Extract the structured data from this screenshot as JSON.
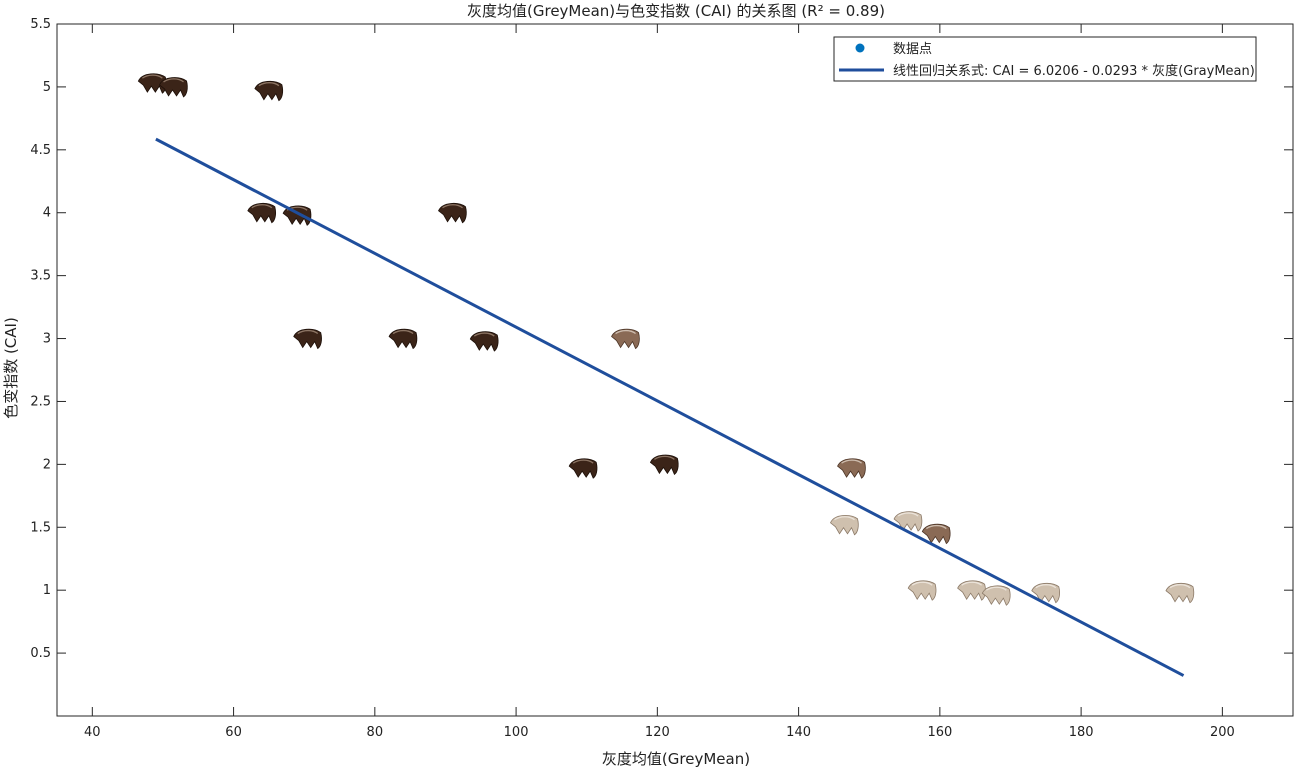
{
  "chart_data": {
    "type": "scatter",
    "title": "灰度均值(GreyMean)与色变指数 (CAI) 的关系图 (R² = 0.89)",
    "xlabel": "灰度均值(GreyMean)",
    "ylabel": "色变指数 (CAI)",
    "xlim": [
      35,
      210
    ],
    "ylim": [
      0,
      5.5
    ],
    "x_ticks": [
      40,
      60,
      80,
      100,
      120,
      140,
      160,
      180,
      200
    ],
    "y_ticks": [
      0.5,
      1,
      1.5,
      2,
      2.5,
      3,
      3.5,
      4,
      4.5,
      5,
      5.5
    ],
    "grid": false,
    "legend_position": "top-right",
    "legend": [
      {
        "label": "数据点",
        "marker": "dot",
        "color": "#0072BD"
      },
      {
        "label": "线性回归关系式: CAI = 6.0206 - 0.0293 * 灰度(GrayMean)",
        "marker": "line",
        "color": "#1F4E9C"
      }
    ],
    "series": [
      {
        "marker_style": "tooth-thumbnail",
        "points": [
          {
            "x": 48.5,
            "y": 5.03,
            "shade": "dark"
          },
          {
            "x": 51.5,
            "y": 5.0,
            "shade": "dark"
          },
          {
            "x": 65.0,
            "y": 4.97,
            "shade": "dark"
          },
          {
            "x": 64.0,
            "y": 4.0,
            "shade": "dark"
          },
          {
            "x": 69.0,
            "y": 3.98,
            "shade": "dark"
          },
          {
            "x": 91.0,
            "y": 4.0,
            "shade": "dark"
          },
          {
            "x": 70.5,
            "y": 3.0,
            "shade": "dark"
          },
          {
            "x": 84.0,
            "y": 3.0,
            "shade": "dark"
          },
          {
            "x": 95.5,
            "y": 2.98,
            "shade": "dark"
          },
          {
            "x": 115.5,
            "y": 3.0,
            "shade": "medium"
          },
          {
            "x": 109.5,
            "y": 1.97,
            "shade": "dark"
          },
          {
            "x": 121.0,
            "y": 2.0,
            "shade": "dark"
          },
          {
            "x": 147.5,
            "y": 1.97,
            "shade": "medium"
          },
          {
            "x": 146.5,
            "y": 1.52,
            "shade": "light"
          },
          {
            "x": 155.5,
            "y": 1.55,
            "shade": "light"
          },
          {
            "x": 159.5,
            "y": 1.45,
            "shade": "medium"
          },
          {
            "x": 157.5,
            "y": 1.0,
            "shade": "light"
          },
          {
            "x": 164.5,
            "y": 1.0,
            "shade": "light"
          },
          {
            "x": 168.0,
            "y": 0.96,
            "shade": "light"
          },
          {
            "x": 175.0,
            "y": 0.98,
            "shade": "light"
          },
          {
            "x": 194.0,
            "y": 0.98,
            "shade": "light"
          }
        ]
      }
    ],
    "regression": {
      "intercept": 6.0206,
      "slope": -0.0293,
      "x_start": 49,
      "x_end": 194.5,
      "color": "#1F4E9C"
    }
  }
}
